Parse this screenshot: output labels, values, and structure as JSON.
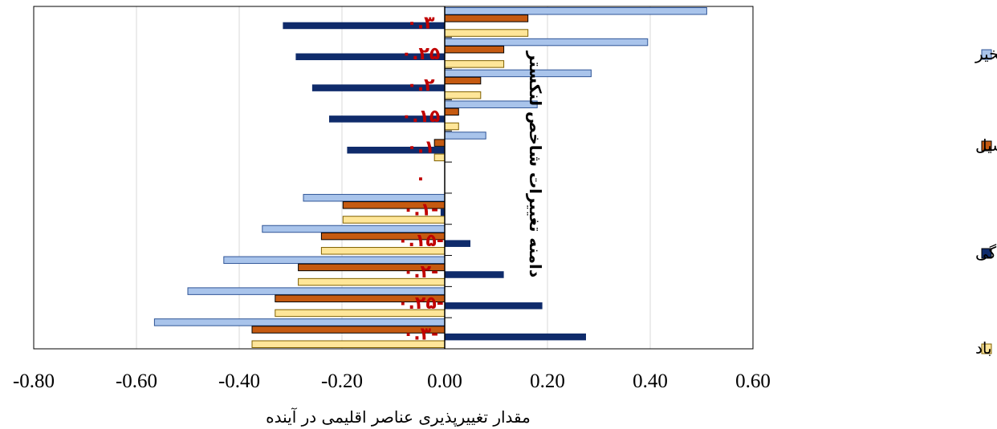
{
  "chart_data": {
    "type": "bar",
    "orientation": "horizontal",
    "xlabel": "مقدار تغییرپذیری عناصر اقلیمی در آینده",
    "ylabel": "دامنه تغییرات شاخص لنکستر",
    "xlim": [
      -0.8,
      0.6
    ],
    "xticks": [
      "-0.80",
      "-0.60",
      "-0.40",
      "-0.20",
      "0.00",
      "0.20",
      "0.40",
      "0.60"
    ],
    "grid": "vertical",
    "legend_position": "right",
    "categories": [
      "۰.۳-",
      "۰.۲۵-",
      "۰.۲-",
      "۰.۱۵-",
      "۰.۱-",
      "۰",
      "۰.۱",
      "۰.۱۵",
      "۰.۲",
      "۰.۲۵",
      "۰.۳"
    ],
    "series": [
      {
        "name": "با تغییر در باد و تبخیر",
        "color": "#a9c4eb",
        "values": [
          -0.565,
          -0.5,
          -0.43,
          -0.355,
          -0.275,
          null,
          0.08,
          0.18,
          0.285,
          0.395,
          0.51
        ]
      },
      {
        "name": "تغییر در تبخیرپتانسیل",
        "color": "#c55a11",
        "values": [
          -0.375,
          -0.33,
          -0.285,
          -0.24,
          -0.198,
          null,
          -0.02,
          0.027,
          0.07,
          0.115,
          0.162
        ]
      },
      {
        "name": "تغییر در بارندگی",
        "color": "#0f2b6b",
        "values": [
          0.275,
          0.19,
          0.115,
          0.05,
          -0.008,
          null,
          -0.19,
          -0.225,
          -0.258,
          -0.29,
          -0.315
        ]
      },
      {
        "name": "تغییر در سرعت باد",
        "color": "#ffe699",
        "values": [
          -0.375,
          -0.33,
          -0.285,
          -0.24,
          -0.198,
          null,
          -0.02,
          0.027,
          0.07,
          0.115,
          0.162
        ]
      }
    ]
  }
}
